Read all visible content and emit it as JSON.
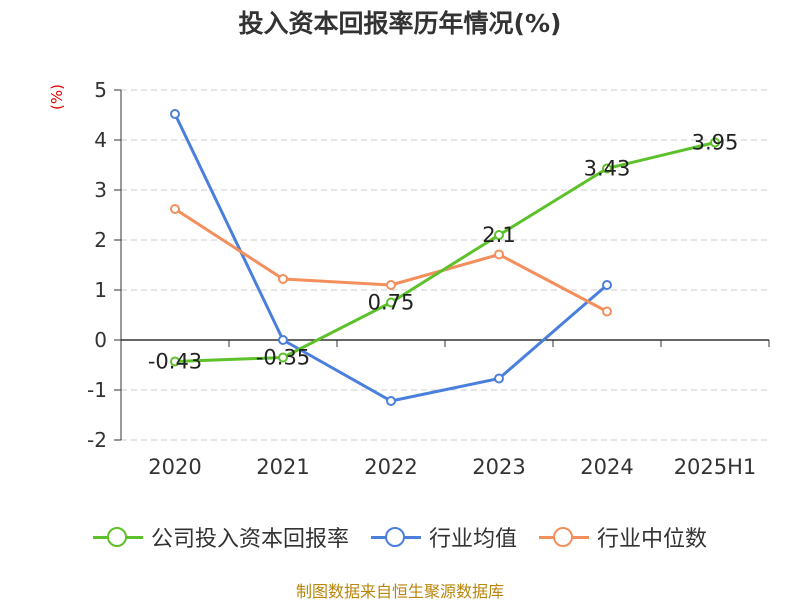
{
  "chart_data": {
    "type": "line",
    "title": "投入资本回报率历年情况(%)",
    "unit_label": "(%)",
    "categories": [
      "2020",
      "2021",
      "2022",
      "2023",
      "2024",
      "2025H1"
    ],
    "ylim": [
      -2,
      5
    ],
    "yticks": [
      -2,
      -1,
      0,
      1,
      2,
      3,
      4,
      5
    ],
    "grid": true,
    "legend_position": "bottom",
    "series": [
      {
        "name": "公司投入资本回报率",
        "color": "#5cc12a",
        "values": [
          -0.43,
          -0.35,
          0.75,
          2.1,
          3.43,
          3.95
        ],
        "labels": [
          "-0.43",
          "-0.35",
          "0.75",
          "2.1",
          "3.43",
          "3.95"
        ]
      },
      {
        "name": "行业均值",
        "color": "#4a7fdc",
        "values": [
          4.52,
          0.0,
          -1.22,
          -0.77,
          1.1,
          null
        ]
      },
      {
        "name": "行业中位数",
        "color": "#f28f5c",
        "values": [
          2.62,
          1.22,
          1.1,
          1.71,
          0.57,
          null
        ]
      }
    ]
  },
  "source_text": "制图数据来自恒生聚源数据库"
}
